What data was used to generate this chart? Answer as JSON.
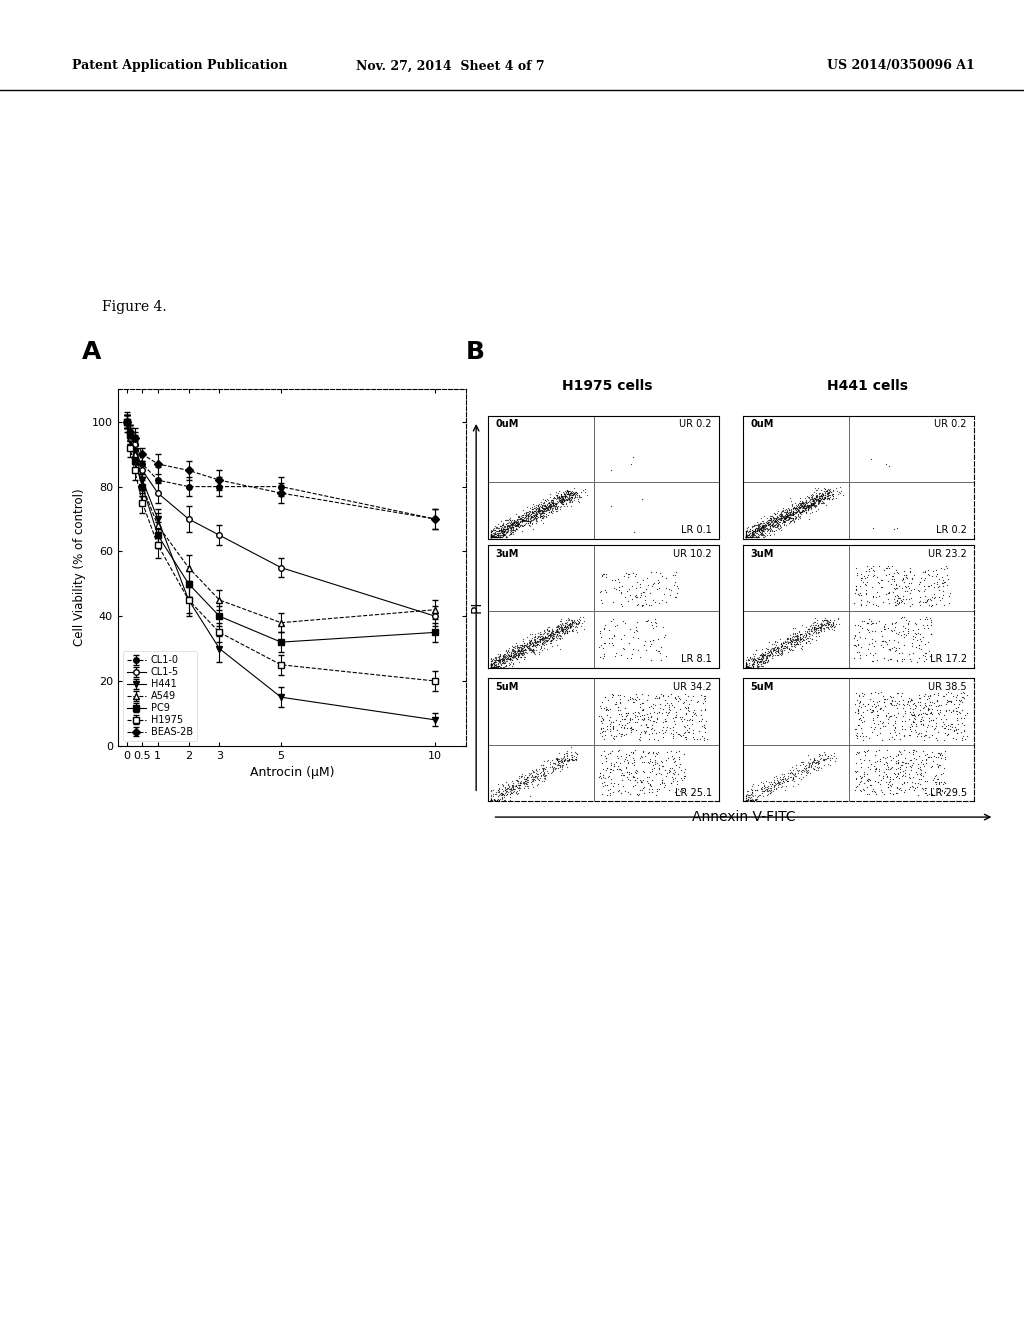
{
  "header_left": "Patent Application Publication",
  "header_mid": "Nov. 27, 2014  Sheet 4 of 7",
  "header_right": "US 2014/0350096 A1",
  "figure_label": "Figure 4.",
  "panel_A_label": "A",
  "panel_B_label": "B",
  "xlabel": "Antrocin (μM)",
  "ylabel": "Cell Viability (% of control)",
  "pi_label": "PI",
  "annexin_label": "Annexin V-FITC",
  "x_values": [
    0,
    0.1,
    0.25,
    0.5,
    1,
    2,
    3,
    5,
    10
  ],
  "series": {
    "CL1-0": {
      "values": [
        100,
        97,
        95,
        87,
        82,
        80,
        80,
        80,
        70
      ],
      "marker": "o",
      "filled": true,
      "linestyle": "--"
    },
    "CL1-5": {
      "values": [
        100,
        96,
        93,
        85,
        78,
        70,
        65,
        55,
        40
      ],
      "marker": "o",
      "filled": false,
      "linestyle": "-"
    },
    "H441": {
      "values": [
        100,
        95,
        91,
        82,
        70,
        45,
        30,
        15,
        8
      ],
      "marker": "v",
      "filled": true,
      "linestyle": "-"
    },
    "A549": {
      "values": [
        100,
        95,
        90,
        80,
        68,
        55,
        45,
        38,
        42
      ],
      "marker": "^",
      "filled": false,
      "linestyle": "--"
    },
    "PC9": {
      "values": [
        100,
        96,
        88,
        80,
        65,
        50,
        40,
        32,
        35
      ],
      "marker": "s",
      "filled": true,
      "linestyle": "-"
    },
    "H1975": {
      "values": [
        100,
        92,
        85,
        75,
        62,
        45,
        35,
        25,
        20
      ],
      "marker": "s",
      "filled": false,
      "linestyle": "--"
    },
    "BEAS-2B": {
      "values": [
        100,
        97,
        95,
        90,
        87,
        85,
        82,
        78,
        70
      ],
      "marker": "D",
      "filled": true,
      "linestyle": "--"
    }
  },
  "error_bars": {
    "CL1-0": [
      3,
      2,
      3,
      3,
      4,
      3,
      3,
      3,
      3
    ],
    "CL1-5": [
      2,
      3,
      3,
      3,
      3,
      4,
      3,
      3,
      3
    ],
    "H441": [
      2,
      3,
      3,
      3,
      3,
      5,
      4,
      3,
      2
    ],
    "A549": [
      2,
      3,
      3,
      3,
      4,
      4,
      3,
      3,
      3
    ],
    "PC9": [
      2,
      3,
      3,
      3,
      4,
      4,
      3,
      3,
      3
    ],
    "H1975": [
      2,
      3,
      3,
      3,
      4,
      4,
      3,
      3,
      3
    ],
    "BEAS-2B": [
      2,
      2,
      2,
      2,
      3,
      3,
      3,
      3,
      3
    ]
  },
  "flow_data": {
    "H1975": {
      "0uM": {
        "UR": "0.2",
        "LR": "0.1"
      },
      "3uM": {
        "UR": "10.2",
        "LR": "8.1"
      },
      "5uM": {
        "UR": "34.2",
        "LR": "25.1"
      }
    },
    "H441": {
      "0uM": {
        "UR": "0.2",
        "LR": "0.2"
      },
      "3uM": {
        "UR": "23.2",
        "LR": "17.2"
      },
      "5uM": {
        "UR": "38.5",
        "LR": "29.5"
      }
    }
  },
  "doses": [
    "0uM",
    "3uM",
    "5uM"
  ],
  "cell_lines_flow": [
    "H1975",
    "H441"
  ],
  "bg_color": "#ffffff",
  "line_color": "#000000"
}
